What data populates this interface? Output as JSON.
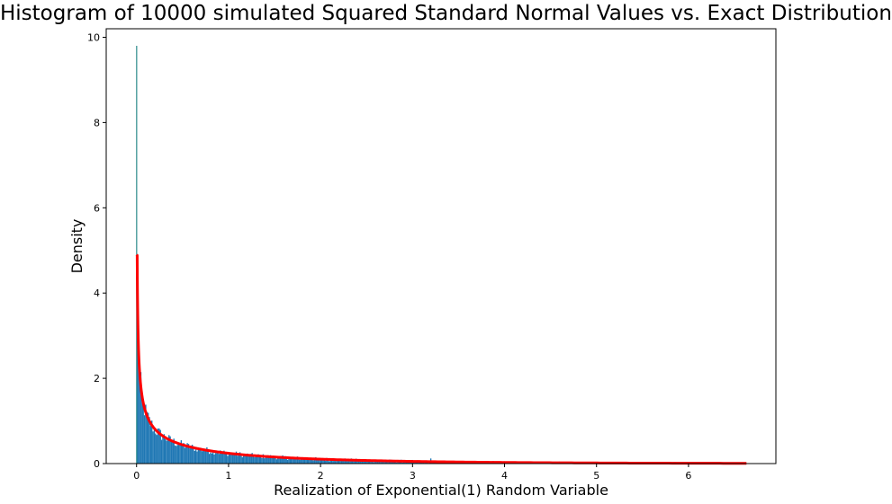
{
  "chart_data": {
    "type": "bar",
    "title": "Histogram of 10000 simulated Squared Standard Normal Values vs. Exact Distribution",
    "xlabel": "Realization of Exponential(1) Random Variable",
    "ylabel": "Density",
    "xlim": [
      -0.33,
      6.95
    ],
    "ylim": [
      0,
      10.2
    ],
    "xticks": [
      0,
      1,
      2,
      3,
      4,
      5,
      6
    ],
    "yticks": [
      0,
      2,
      4,
      6,
      8,
      10
    ],
    "grid": false,
    "legend": "none",
    "colors": {
      "histogram": "#1f77b4",
      "density_curve": "#ff0000",
      "spike": "#2a8a8a"
    },
    "histogram": {
      "bin_width": 0.0133,
      "x_start": 0.0,
      "x_end": 6.63,
      "spike": {
        "x": 0.0,
        "density": 9.8
      },
      "sample_densities": [
        {
          "x": 0.01,
          "density": 3.0
        },
        {
          "x": 0.05,
          "density": 2.1
        },
        {
          "x": 0.1,
          "density": 1.4
        },
        {
          "x": 0.2,
          "density": 0.9
        },
        {
          "x": 0.3,
          "density": 0.7
        },
        {
          "x": 0.5,
          "density": 0.55
        },
        {
          "x": 0.75,
          "density": 0.4
        },
        {
          "x": 1.0,
          "density": 0.3
        },
        {
          "x": 1.5,
          "density": 0.2
        },
        {
          "x": 2.0,
          "density": 0.13
        },
        {
          "x": 2.5,
          "density": 0.09
        },
        {
          "x": 3.0,
          "density": 0.06
        },
        {
          "x": 3.2,
          "density": 0.12
        },
        {
          "x": 3.5,
          "density": 0.04
        },
        {
          "x": 4.0,
          "density": 0.03
        },
        {
          "x": 5.0,
          "density": 0.02
        },
        {
          "x": 6.0,
          "density": 0.015
        }
      ]
    },
    "density_curve": {
      "name": "",
      "x_start": 0.0,
      "x_end": 6.63,
      "peak_density": 4.9
    }
  }
}
